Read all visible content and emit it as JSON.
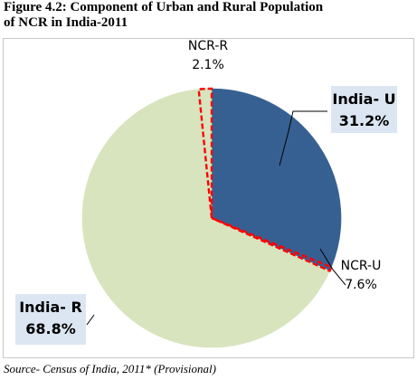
{
  "figure": {
    "title_line1": "Figure 4.2: Component of Urban and Rural Population",
    "title_line2": "of NCR in India-2011",
    "source": "Source- Census of India, 2011* (Provisional)"
  },
  "chart_data": {
    "type": "pie",
    "title": "",
    "slices": [
      {
        "name": "India- U",
        "value": 31.2,
        "label": "31.2%",
        "color": "#376092",
        "highlight": false,
        "boxed": true
      },
      {
        "name": "NCR-U",
        "value": 0.5,
        "label": "7.6%",
        "color": "#376092",
        "highlight": true,
        "boxed": false
      },
      {
        "name": "India- R",
        "value": 66.7,
        "label": "68.8%",
        "color": "#d7e4bd",
        "highlight": false,
        "boxed": true
      },
      {
        "name": "NCR-R",
        "value": 1.6,
        "label": "2.1%",
        "color": "#d7e4bd",
        "highlight": true,
        "boxed": false
      }
    ],
    "highlight_color": "#ff0000",
    "label_box_color": "#dce6f2",
    "start": "12 o'clock, clockwise"
  }
}
